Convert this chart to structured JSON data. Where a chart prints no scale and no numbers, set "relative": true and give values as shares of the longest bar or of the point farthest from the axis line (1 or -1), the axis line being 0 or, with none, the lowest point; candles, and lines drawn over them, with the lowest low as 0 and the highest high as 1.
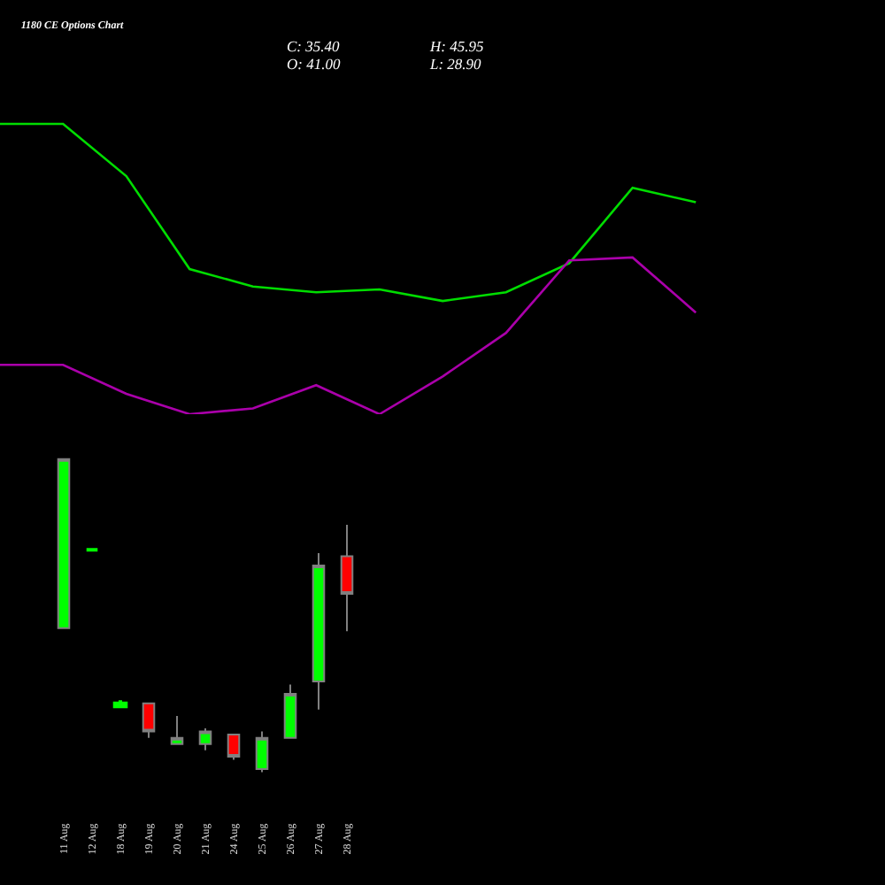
{
  "chart_data": [
    {
      "type": "line",
      "title": "1180 CE Options Chart",
      "relative": true,
      "categories": [
        null,
        null,
        null,
        null,
        null,
        null,
        null,
        null,
        null,
        null,
        null,
        null
      ],
      "series": [
        {
          "color": "#00dd00",
          "values": [
            1,
            1,
            0.82,
            0.5,
            0.44,
            0.42,
            0.43,
            0.39,
            0.42,
            0.52,
            0.78,
            0.73
          ]
        },
        {
          "color": "#aa00aa",
          "values": [
            0.17,
            0.17,
            0.07,
            0,
            0.02,
            0.1,
            0,
            0.13,
            0.28,
            0.53,
            0.54,
            0.35
          ]
        }
      ]
    },
    {
      "type": "candlestick",
      "annotations": [
        "C: 35.40",
        "H: 45.95",
        "O: 41.00",
        "L: 28.90"
      ],
      "relative": true,
      "categories": [
        "11 Aug",
        "12 Aug",
        "18 Aug",
        "19 Aug",
        "20 Aug",
        "21 Aug",
        "24 Aug",
        "25 Aug",
        "26 Aug",
        "27 Aug",
        "28 Aug"
      ],
      "ohlc": [
        [
          0.46,
          1,
          0.46,
          1
        ],
        [
          0.71,
          0.71,
          0.71,
          0.71
        ],
        [
          0.21,
          0.23,
          0.21,
          0.22
        ],
        [
          0.22,
          0.22,
          0.11,
          0.13
        ],
        [
          0.09,
          0.18,
          0.09,
          0.11
        ],
        [
          0.09,
          0.14,
          0.07,
          0.13
        ],
        [
          0.12,
          0.12,
          0.04,
          0.05
        ],
        [
          0.01,
          0.13,
          0,
          0.11
        ],
        [
          0.11,
          0.28,
          0.11,
          0.25
        ],
        [
          0.29,
          0.7,
          0.2,
          0.66
        ],
        [
          0.69,
          0.79,
          0.45,
          0.57
        ]
      ],
      "colors": [
        "#00ff00",
        "#00ff00",
        "#00ff00",
        "#ff0000",
        "#00ff00",
        "#00ff00",
        "#ff0000",
        "#00ff00",
        "#00ff00",
        "#00ff00",
        "#ff0000"
      ]
    }
  ]
}
